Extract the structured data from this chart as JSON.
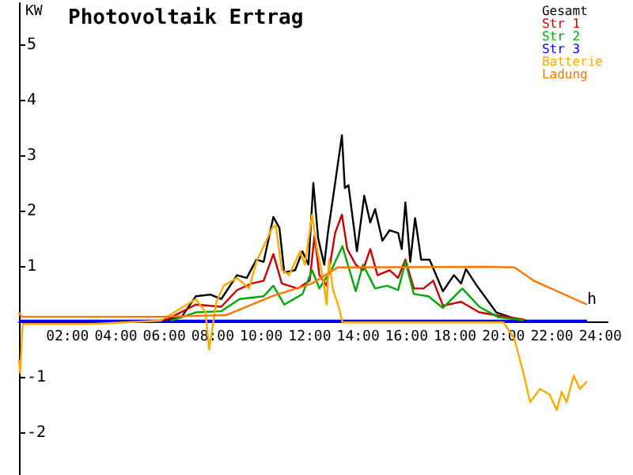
{
  "chart_data": {
    "type": "line",
    "title": "Photovoltaik Ertrag",
    "ylabel": "KW",
    "legend": "top right",
    "grid": false,
    "marker": "none",
    "line_style": "solid",
    "xlim": [
      0,
      24.3
    ],
    "xticks": [
      {
        "value": 2,
        "label": "02:00"
      },
      {
        "value": 4,
        "label": "04:00"
      },
      {
        "value": 6,
        "label": "06:00"
      },
      {
        "value": 8,
        "label": "08:00"
      },
      {
        "value": 10,
        "label": "10:00"
      },
      {
        "value": 12,
        "label": "12:00"
      },
      {
        "value": 14,
        "label": "14:00"
      },
      {
        "value": 16,
        "label": "16:00"
      },
      {
        "value": 18,
        "label": "18:00"
      },
      {
        "value": 20,
        "label": "20:00"
      },
      {
        "value": 22,
        "label": "22:00"
      },
      {
        "value": 24,
        "label": "24:00"
      }
    ],
    "ylim": [
      -2.75,
      5.75
    ],
    "yticks": [
      -2,
      -1,
      {
        "value": 0,
        "label": null
      },
      1,
      2,
      3,
      4,
      5
    ],
    "annotations": [
      {
        "text": "h",
        "x": 23.45,
        "y": 0.2
      }
    ],
    "series": [
      {
        "name": "Gesamt",
        "color": "#000000",
        "x": [
          5.85,
          6.7,
          7.3,
          7.9,
          8.35,
          9.0,
          9.4,
          9.8,
          10.1,
          10.5,
          10.75,
          10.95,
          11.4,
          11.7,
          11.95,
          12.15,
          12.35,
          12.6,
          12.75,
          13.05,
          13.33,
          13.45,
          13.6,
          13.95,
          14.25,
          14.5,
          14.7,
          15.0,
          15.3,
          15.65,
          15.8,
          15.95,
          16.15,
          16.35,
          16.6,
          16.95,
          17.5,
          17.95,
          18.25,
          18.45,
          18.9,
          19.7,
          20.45,
          20.95
        ],
        "values": [
          0.04,
          0.09,
          0.47,
          0.5,
          0.42,
          0.85,
          0.8,
          1.13,
          1.09,
          1.9,
          1.7,
          0.9,
          0.94,
          1.28,
          1.04,
          2.51,
          1.51,
          1.04,
          1.61,
          2.51,
          3.37,
          2.42,
          2.47,
          1.28,
          2.28,
          1.8,
          2.04,
          1.47,
          1.66,
          1.61,
          1.32,
          2.16,
          1.09,
          1.88,
          1.13,
          1.13,
          0.56,
          0.85,
          0.7,
          0.96,
          0.66,
          0.18,
          0.07,
          0.03
        ]
      },
      {
        "name": "Str 1",
        "color": "#cc0000",
        "x": [
          6.05,
          7.3,
          8.35,
          9.0,
          9.6,
          10.1,
          10.5,
          10.85,
          11.5,
          12.0,
          12.2,
          12.4,
          12.7,
          13.05,
          13.33,
          13.55,
          13.9,
          14.2,
          14.5,
          14.8,
          15.3,
          15.65,
          15.95,
          16.3,
          16.7,
          17.1,
          17.5,
          18.25,
          19.0,
          19.8,
          20.85
        ],
        "values": [
          0.04,
          0.32,
          0.28,
          0.58,
          0.7,
          0.75,
          1.23,
          0.7,
          0.61,
          0.75,
          1.56,
          0.85,
          0.66,
          1.61,
          1.94,
          1.32,
          1.04,
          0.94,
          1.32,
          0.85,
          0.94,
          0.8,
          1.13,
          0.61,
          0.61,
          0.75,
          0.3,
          0.37,
          0.18,
          0.12,
          0.05
        ]
      },
      {
        "name": "Str 2",
        "color": "#00aa00",
        "x": [
          6.25,
          7.3,
          8.35,
          9.1,
          10.1,
          10.5,
          10.95,
          11.7,
          12.1,
          12.4,
          12.95,
          13.35,
          13.9,
          14.2,
          14.7,
          15.2,
          15.65,
          15.95,
          16.3,
          16.9,
          17.5,
          18.3,
          19.0,
          19.8,
          20.85
        ],
        "values": [
          0.03,
          0.18,
          0.2,
          0.42,
          0.47,
          0.66,
          0.32,
          0.51,
          0.94,
          0.61,
          0.99,
          1.37,
          0.56,
          1.04,
          0.61,
          0.66,
          0.58,
          1.09,
          0.51,
          0.47,
          0.26,
          0.61,
          0.28,
          0.09,
          0.04
        ]
      },
      {
        "name": "Str 3",
        "color": "#0000ff",
        "x": [
          0,
          6,
          12,
          18,
          23.45
        ],
        "values": [
          0.02,
          0.02,
          0.02,
          0.02,
          0.02
        ]
      },
      {
        "name": "Batterie",
        "color": "#ffaa00",
        "x": [
          0,
          0.05,
          0.15,
          0.45,
          3,
          5.85,
          7.3,
          7.7,
          7.85,
          8.15,
          8.45,
          9.0,
          9.5,
          9.8,
          10.45,
          10.6,
          10.85,
          11.15,
          11.6,
          11.8,
          12.1,
          12.3,
          12.55,
          12.7,
          12.8,
          12.95,
          13.2,
          13.35,
          16,
          20.0,
          20.45,
          20.85,
          21.1,
          21.5,
          21.9,
          22.2,
          22.4,
          22.6,
          22.9,
          23.15,
          23.45
        ],
        "values": [
          -0.68,
          -0.91,
          -0.03,
          -0.03,
          -0.03,
          0.03,
          0.42,
          0.18,
          -0.49,
          0.37,
          0.66,
          0.8,
          0.61,
          1.09,
          1.7,
          1.75,
          0.94,
          0.85,
          1.28,
          1.04,
          1.94,
          1.32,
          0.8,
          0.32,
          1.13,
          0.61,
          0.28,
          0.0,
          0.0,
          0.0,
          -0.3,
          -0.96,
          -1.44,
          -1.2,
          -1.3,
          -1.58,
          -1.25,
          -1.44,
          -0.96,
          -1.2,
          -1.06
        ]
      },
      {
        "name": "Ladung",
        "color": "#ff7700",
        "x": [
          0,
          0.1,
          5.85,
          8.55,
          10.45,
          12.1,
          13.15,
          19.2,
          20.45,
          21.25,
          23.45
        ],
        "values": [
          0.18,
          0.1,
          0.1,
          0.13,
          0.47,
          0.7,
          0.99,
          1.0,
          0.99,
          0.75,
          0.32
        ]
      }
    ]
  }
}
